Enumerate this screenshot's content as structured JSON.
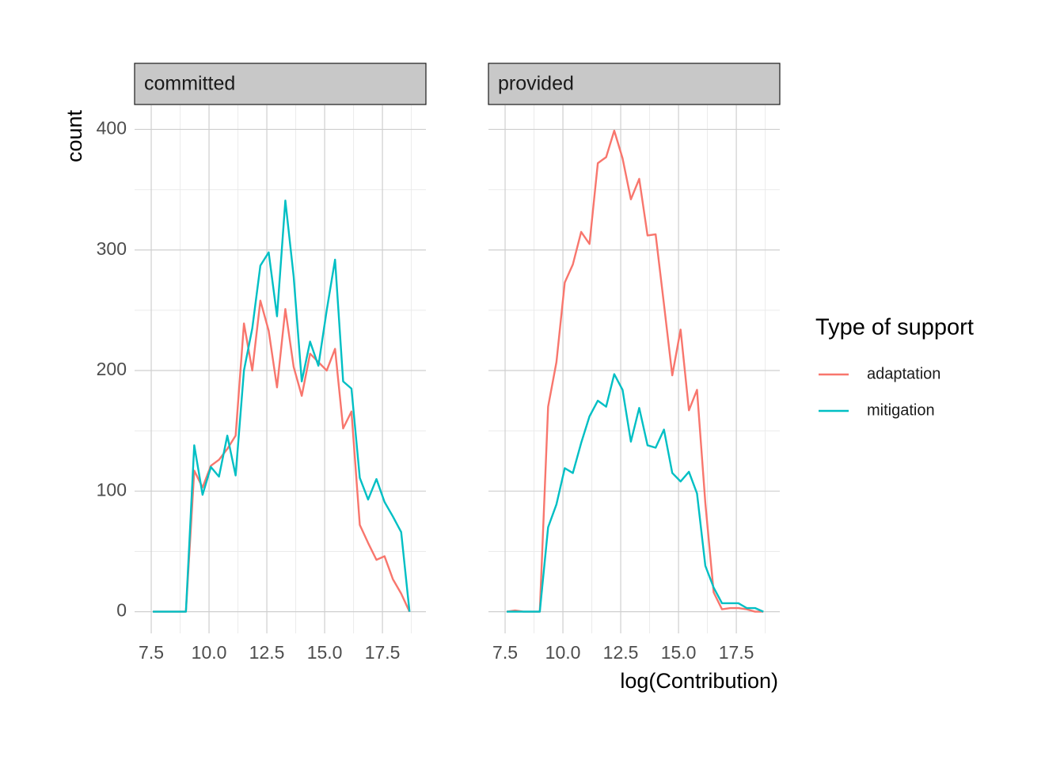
{
  "chart_data": {
    "type": "line",
    "ylabel": "count",
    "xlabel": "log(Contribution)",
    "legend_title": "Type of support",
    "legend": "right",
    "series": [
      {
        "name": "adaptation",
        "color": "#F8766D"
      },
      {
        "name": "mitigation",
        "color": "#00BFC4"
      }
    ],
    "x": [
      7.57,
      7.93,
      8.29,
      8.64,
      9.0,
      9.36,
      9.72,
      10.08,
      10.43,
      10.79,
      11.15,
      11.51,
      11.87,
      12.22,
      12.58,
      12.94,
      13.3,
      13.66,
      14.01,
      14.37,
      14.73,
      15.09,
      15.45,
      15.8,
      16.16,
      16.52,
      16.88,
      17.24,
      17.59,
      17.95,
      18.31,
      18.67
    ],
    "panels": [
      {
        "title": "committed",
        "series": [
          {
            "values": [
              0,
              0,
              0,
              0,
              0,
              117,
              103,
              121,
              126,
              135,
              146,
              239,
              200,
              258,
              233,
              186,
              251,
              203,
              179,
              214,
              207,
              200,
              218,
              152,
              166,
              72,
              57,
              43,
              46,
              27,
              15,
              0
            ]
          },
          {
            "values": [
              0,
              0,
              0,
              0,
              0,
              138,
              97,
              120,
              112,
              146,
              113,
              200,
              235,
              287,
              298,
              245,
              341,
              278,
              191,
              224,
              204,
              250,
              292,
              191,
              185,
              111,
              93,
              110,
              91,
              79,
              66,
              0
            ]
          }
        ]
      },
      {
        "title": "provided",
        "series": [
          {
            "values": [
              0,
              1,
              0,
              0,
              0,
              170,
              207,
              273,
              288,
              315,
              305,
              372,
              377,
              399,
              376,
              342,
              359,
              312,
              313,
              255,
              196,
              234,
              167,
              184,
              90,
              16,
              2,
              3,
              3,
              2,
              0,
              0
            ]
          },
          {
            "values": [
              0,
              0,
              0,
              0,
              0,
              70,
              89,
              119,
              115,
              140,
              162,
              175,
              170,
              197,
              184,
              141,
              169,
              138,
              136,
              151,
              115,
              108,
              116,
              98,
              38,
              20,
              7,
              7,
              7,
              3,
              3,
              0
            ]
          }
        ]
      }
    ],
    "xlim": [
      6.78,
      19.38
    ],
    "ylim": [
      -18,
      420
    ],
    "xticks": [
      7.5,
      {
        "value": 10,
        "label": "10.0"
      },
      12.5,
      {
        "value": 15,
        "label": "15.0"
      },
      17.5
    ],
    "yticks": [
      0,
      100,
      200,
      300,
      400
    ],
    "xminor": [
      8.75,
      11.25,
      13.75,
      16.25,
      18.75
    ],
    "yminor": [
      50,
      150,
      250,
      350
    ],
    "grid": true
  }
}
